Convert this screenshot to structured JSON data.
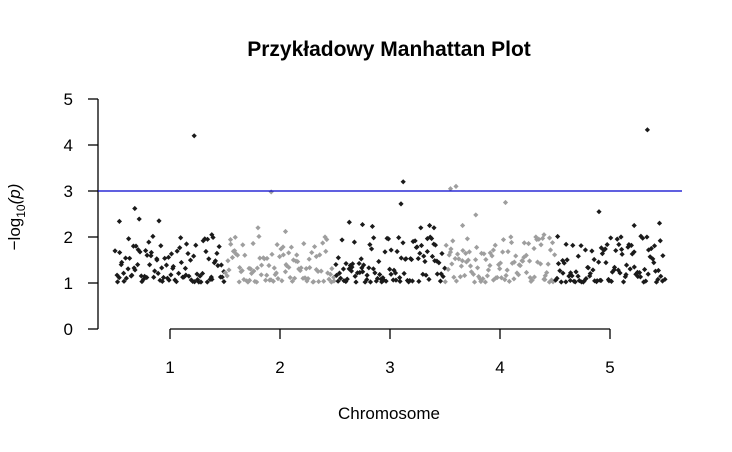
{
  "chart_data": {
    "type": "scatter",
    "title": "Przykładowy Manhattan Plot",
    "xlabel": "Chromosome",
    "ylabel": "−log",
    "ylabel_sub": "10",
    "ylabel_arg": "(p)",
    "ylim": [
      0,
      5
    ],
    "y_ticks": [
      "0",
      "1",
      "2",
      "3",
      "4",
      "5"
    ],
    "x_ticks": [
      "1",
      "2",
      "3",
      "4",
      "5"
    ],
    "threshold": 3,
    "threshold_color": "#0000cd",
    "colors": [
      "#1a1a1a",
      "#9e9e9e"
    ],
    "chromosomes": [
      {
        "name": "1",
        "color": "#1a1a1a",
        "n": 100,
        "highlights": [
          [
            0.18,
            2.62
          ],
          [
            0.4,
            2.35
          ],
          [
            0.04,
            2.34
          ],
          [
            0.22,
            2.39
          ],
          [
            0.88,
            2.05
          ],
          [
            0.72,
            4.2
          ]
        ]
      },
      {
        "name": "2",
        "color": "#9e9e9e",
        "n": 100,
        "highlights": [
          [
            0.42,
            2.98
          ],
          [
            0.3,
            2.2
          ],
          [
            0.55,
            2.12
          ]
        ]
      },
      {
        "name": "3",
        "color": "#1a1a1a",
        "n": 100,
        "highlights": [
          [
            0.13,
            2.32
          ],
          [
            0.25,
            2.27
          ],
          [
            0.34,
            2.23
          ],
          [
            0.62,
            3.2
          ],
          [
            0.6,
            2.72
          ],
          [
            0.78,
            2.2
          ],
          [
            0.9,
            2.2
          ],
          [
            0.86,
            2.25
          ]
        ]
      },
      {
        "name": "4",
        "color": "#9e9e9e",
        "n": 100,
        "highlights": [
          [
            0.05,
            3.05
          ],
          [
            0.1,
            3.1
          ],
          [
            0.16,
            2.25
          ],
          [
            0.28,
            2.48
          ],
          [
            0.55,
            2.75
          ],
          [
            0.9,
            2.05
          ],
          [
            0.95,
            1.98
          ]
        ]
      },
      {
        "name": "5",
        "color": "#1a1a1a",
        "n": 100,
        "highlights": [
          [
            0.4,
            2.55
          ],
          [
            0.84,
            4.33
          ],
          [
            0.72,
            2.25
          ],
          [
            0.95,
            2.3
          ],
          [
            0.6,
            2.0
          ]
        ]
      }
    ]
  }
}
